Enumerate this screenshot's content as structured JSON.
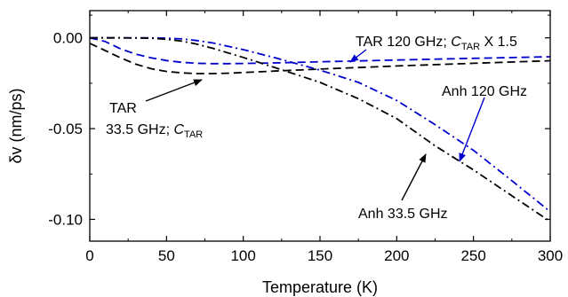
{
  "chart_data": {
    "type": "line",
    "xlabel": "Temperature (K)",
    "ylabel": "δv (nm/ps)",
    "xlim": [
      0,
      300
    ],
    "ylim": [
      -0.112,
      0.015
    ],
    "xticks": [
      0,
      50,
      100,
      150,
      200,
      250,
      300
    ],
    "xtick_labels": [
      "0",
      "50",
      "100",
      "150",
      "200",
      "250",
      "300"
    ],
    "yticks": [
      0.0,
      -0.05,
      -0.1
    ],
    "ytick_labels": [
      "0.00",
      "-0.05",
      "-0.10"
    ],
    "grid": false,
    "series": [
      {
        "color": "#0000cc",
        "dash": "dash",
        "x": [
          0,
          10,
          20,
          30,
          40,
          50,
          60,
          70,
          80,
          90,
          100,
          120,
          150,
          200,
          250,
          300
        ],
        "y": [
          0.0,
          -0.002,
          -0.006,
          -0.009,
          -0.011,
          -0.0125,
          -0.0135,
          -0.014,
          -0.0142,
          -0.0142,
          -0.0141,
          -0.0138,
          -0.0132,
          -0.0122,
          -0.0113,
          -0.0104
        ]
      },
      {
        "color": "#000000",
        "dash": "dash",
        "x": [
          0,
          10,
          20,
          30,
          40,
          50,
          60,
          70,
          80,
          90,
          100,
          120,
          150,
          200,
          250,
          300
        ],
        "y": [
          -0.003,
          -0.007,
          -0.011,
          -0.0145,
          -0.017,
          -0.0185,
          -0.0193,
          -0.0197,
          -0.0197,
          -0.0195,
          -0.0191,
          -0.0183,
          -0.0172,
          -0.0155,
          -0.014,
          -0.0126
        ]
      },
      {
        "color": "#0000cc",
        "dash": "dashdot",
        "x": [
          0,
          20,
          40,
          50,
          60,
          70,
          80,
          100,
          120,
          150,
          175,
          200,
          225,
          250,
          275,
          300
        ],
        "y": [
          0.0,
          0.0,
          0.0,
          -0.0002,
          -0.0006,
          -0.0015,
          -0.0028,
          -0.0065,
          -0.0108,
          -0.0178,
          -0.0245,
          -0.0345,
          -0.0478,
          -0.062,
          -0.0787,
          -0.0958
        ]
      },
      {
        "color": "#000000",
        "dash": "dashdot",
        "x": [
          0,
          20,
          40,
          50,
          60,
          70,
          80,
          100,
          120,
          150,
          175,
          200,
          225,
          250,
          275,
          300
        ],
        "y": [
          0.0,
          0.0,
          -0.0002,
          -0.0008,
          -0.0018,
          -0.0035,
          -0.0057,
          -0.0108,
          -0.0162,
          -0.0245,
          -0.0335,
          -0.0445,
          -0.0595,
          -0.0728,
          -0.087,
          -0.1012
        ]
      }
    ],
    "annotations": [
      {
        "id": "tar120",
        "color": "#000000",
        "text_main": "TAR 120 GHz; ",
        "text_c": "C",
        "text_sub": "TAR",
        "text_tail": " X 1.5"
      },
      {
        "id": "tar335",
        "color": "#000000",
        "line1": "TAR",
        "text_main": "33.5 GHz; ",
        "text_c": "C",
        "text_sub": "TAR"
      },
      {
        "id": "anh120",
        "color": "#000000",
        "text": "Anh 120 GHz"
      },
      {
        "id": "anh335",
        "color": "#000000",
        "text": "Anh 33.5 GHz"
      }
    ],
    "arrows": [
      {
        "id": "tar120-arrow",
        "color": "#0000cc"
      },
      {
        "id": "tar335-arrow",
        "color": "#000000"
      },
      {
        "id": "anh120-arrow",
        "color": "#0000cc"
      },
      {
        "id": "anh335-arrow",
        "color": "#000000"
      }
    ]
  }
}
